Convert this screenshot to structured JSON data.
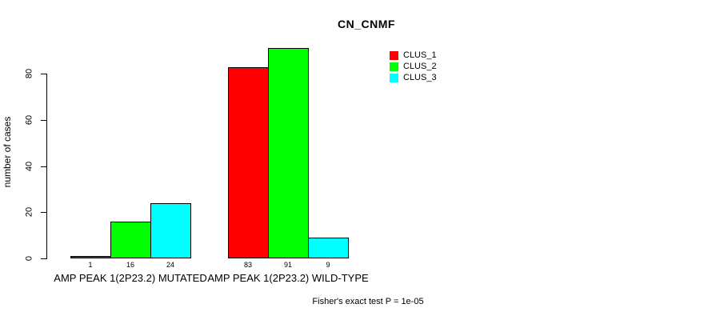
{
  "chart_data": {
    "type": "bar",
    "title": "CN_CNMF",
    "ylabel": "number of cases",
    "xlabel": "",
    "categories": [
      "AMP PEAK 1(2P23.2) MUTATED",
      "AMP PEAK 1(2P23.2) WILD-TYPE"
    ],
    "series": [
      {
        "name": "CLUS_1",
        "color": "#ff0000",
        "values": [
          1,
          83
        ]
      },
      {
        "name": "CLUS_2",
        "color": "#00ff00",
        "values": [
          16,
          91
        ]
      },
      {
        "name": "CLUS_3",
        "color": "#00ffff",
        "values": [
          24,
          9
        ]
      }
    ],
    "yticks": [
      0,
      20,
      40,
      60,
      80
    ],
    "ylim": [
      0,
      92
    ],
    "grid": false,
    "bar_border_color": "#000000",
    "bar_value_labels_shown": true,
    "legend_position": "top-right",
    "annotation": "Fisher's exact test P = 1e-05"
  }
}
